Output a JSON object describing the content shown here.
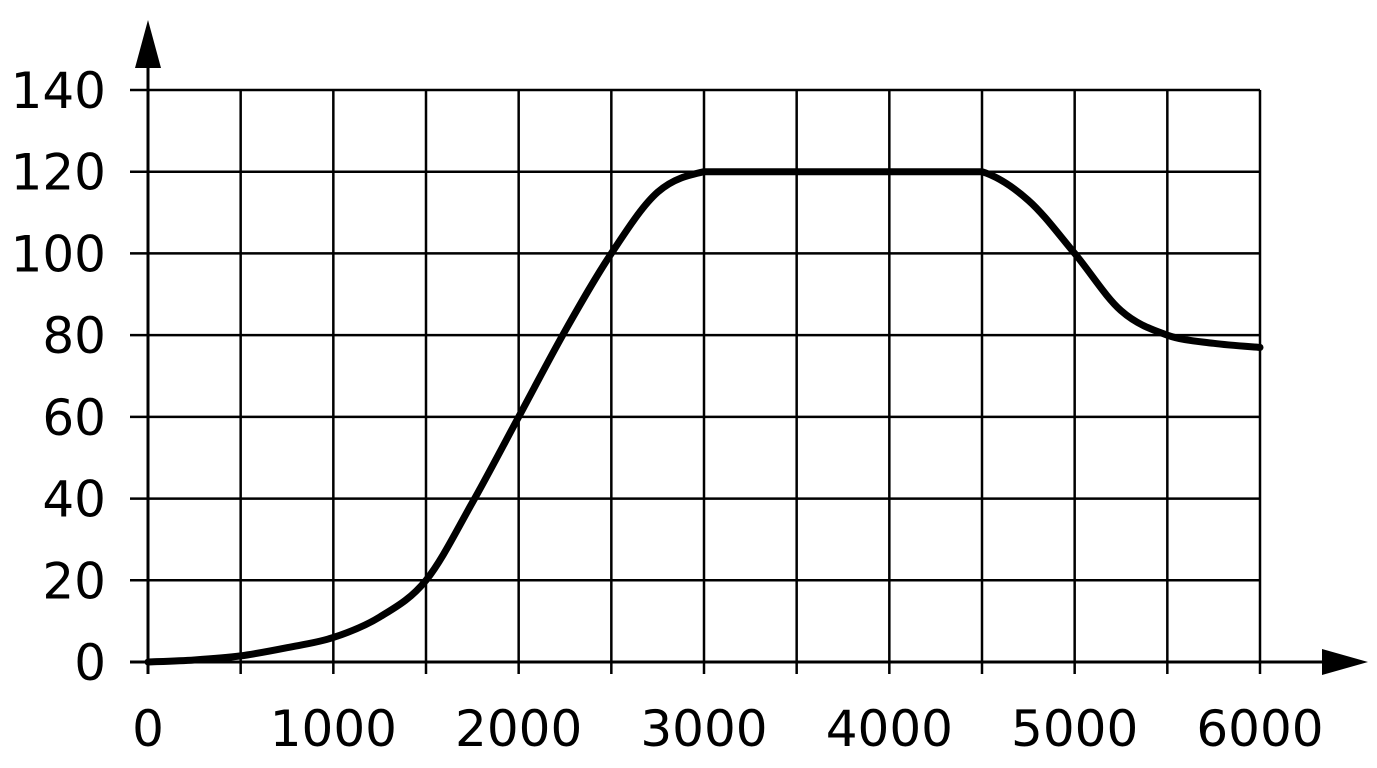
{
  "chart_data": {
    "type": "line",
    "title": "",
    "xlabel": "",
    "ylabel": "",
    "xlim": [
      0,
      6000
    ],
    "ylim": [
      0,
      140
    ],
    "x_ticks": [
      "0",
      "1000",
      "2000",
      "3000",
      "4000",
      "5000",
      "6000"
    ],
    "y_ticks": [
      "0",
      "20",
      "40",
      "60",
      "80",
      "100",
      "120",
      "140"
    ],
    "grid_x_step": 500,
    "grid_y_step": 20,
    "grid": true,
    "legend": "none",
    "line_color": "#000000",
    "series": [
      {
        "x": [
          0,
          250,
          500,
          750,
          1000,
          1250,
          1500,
          1750,
          2000,
          2250,
          2500,
          2750,
          3000,
          3250,
          3500,
          3750,
          4000,
          4250,
          4500,
          4750,
          5000,
          5250,
          5500,
          5750,
          6000
        ],
        "y": [
          0,
          0.5,
          1.5,
          3.5,
          6,
          11,
          20,
          39,
          60,
          81,
          100,
          115,
          120,
          120,
          120,
          120,
          120,
          120,
          120,
          113,
          100,
          86,
          80,
          78,
          77
        ]
      }
    ]
  }
}
